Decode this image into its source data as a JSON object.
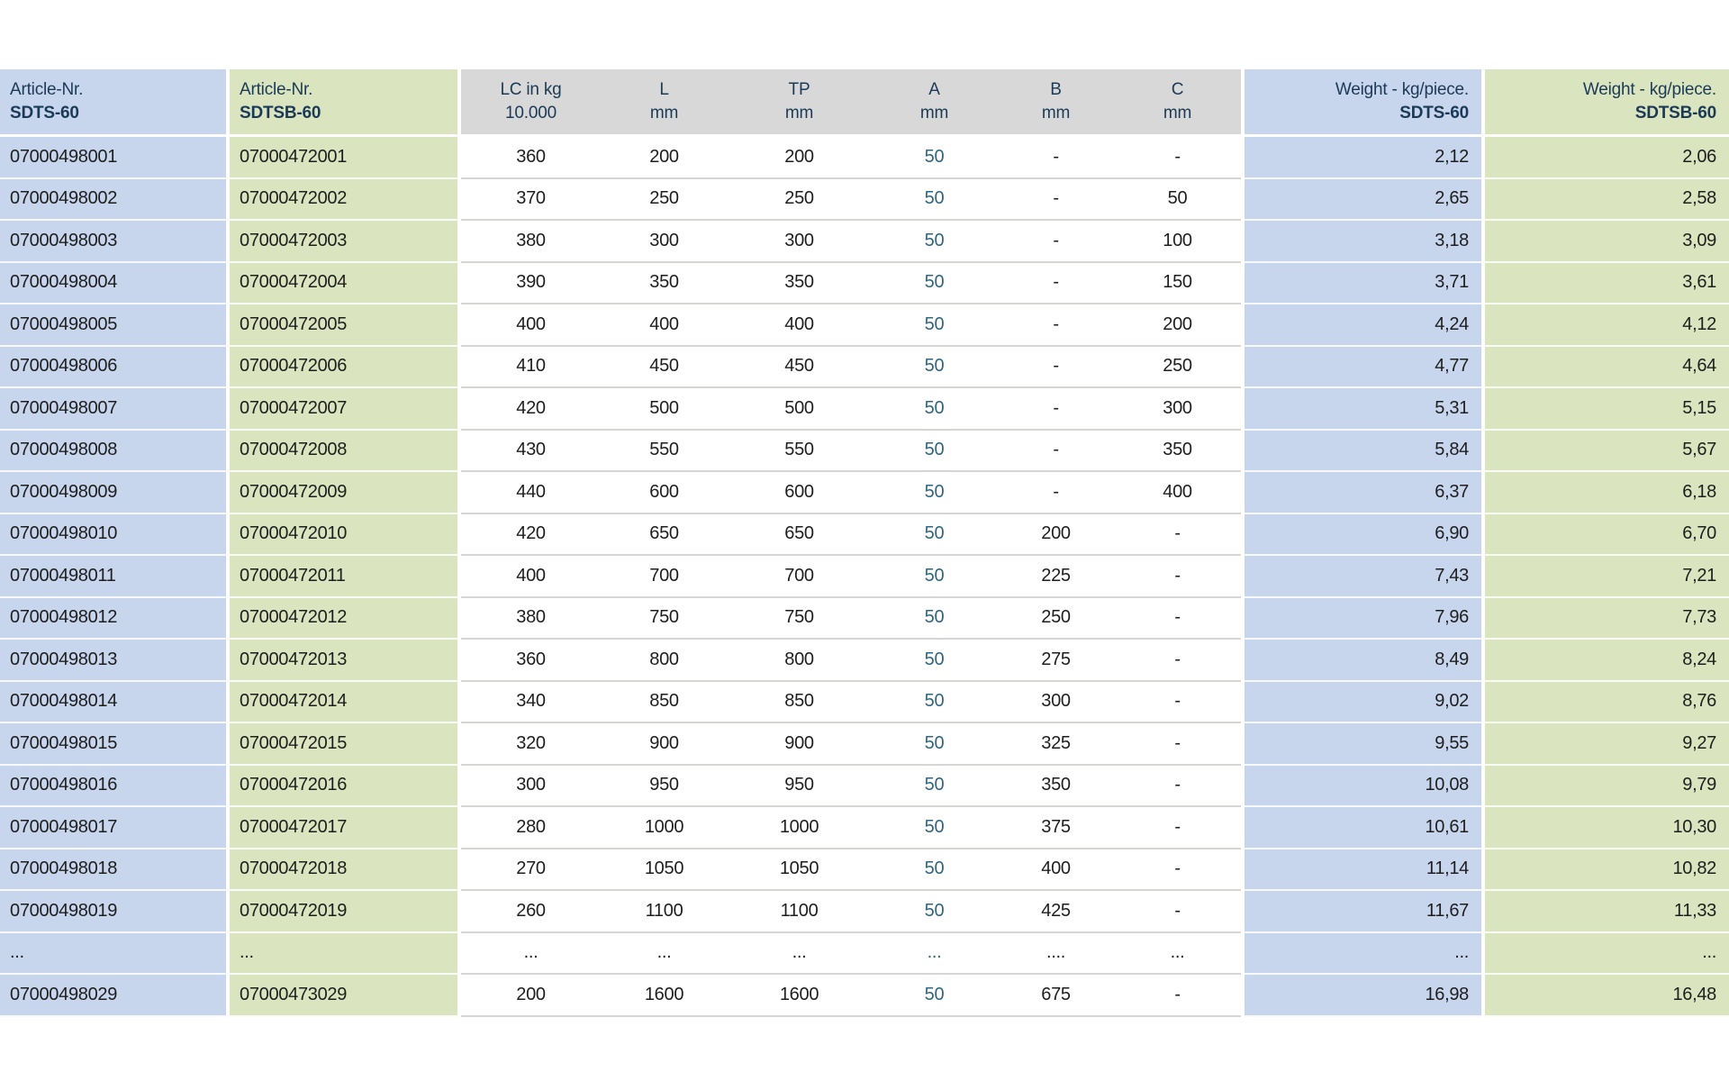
{
  "colors": {
    "blue_column": "#c7d5ed",
    "green_column": "#dae5c0",
    "gray_header": "#d8d8d8",
    "header_text": "#1b3a57",
    "body_text": "#1e1e1e",
    "a_column_text": "#2f6680"
  },
  "table": {
    "headers": [
      {
        "line1": "Article-Nr.",
        "line2": "SDTS-60",
        "align": "left",
        "bg": "blue",
        "bold2": true
      },
      {
        "line1": "Article-Nr.",
        "line2": "SDTSB-60",
        "align": "left",
        "bg": "green",
        "bold2": true
      },
      {
        "line1": "LC in kg",
        "line2": "10.000",
        "align": "center",
        "bg": "gray",
        "bold2": false
      },
      {
        "line1": "L",
        "line2": "mm",
        "align": "center",
        "bg": "gray",
        "bold2": false
      },
      {
        "line1": "TP",
        "line2": "mm",
        "align": "center",
        "bg": "gray",
        "bold2": false
      },
      {
        "line1": "A",
        "line2": "mm",
        "align": "center",
        "bg": "gray",
        "bold2": false
      },
      {
        "line1": "B",
        "line2": "mm",
        "align": "center",
        "bg": "gray",
        "bold2": false
      },
      {
        "line1": "C",
        "line2": "mm",
        "align": "center",
        "bg": "gray",
        "bold2": false
      },
      {
        "line1": "Weight - kg/piece.",
        "line2": "SDTS-60",
        "align": "right",
        "bg": "blue",
        "bold2": true
      },
      {
        "line1": "Weight - kg/piece.",
        "line2": "SDTSB-60",
        "align": "right",
        "bg": "green",
        "bold2": true
      }
    ],
    "rows": [
      [
        "07000498001",
        "07000472001",
        "360",
        "200",
        "200",
        "50",
        "-",
        "-",
        "2,12",
        "2,06"
      ],
      [
        "07000498002",
        "07000472002",
        "370",
        "250",
        "250",
        "50",
        "-",
        "50",
        "2,65",
        "2,58"
      ],
      [
        "07000498003",
        "07000472003",
        "380",
        "300",
        "300",
        "50",
        "-",
        "100",
        "3,18",
        "3,09"
      ],
      [
        "07000498004",
        "07000472004",
        "390",
        "350",
        "350",
        "50",
        "-",
        "150",
        "3,71",
        "3,61"
      ],
      [
        "07000498005",
        "07000472005",
        "400",
        "400",
        "400",
        "50",
        "-",
        "200",
        "4,24",
        "4,12"
      ],
      [
        "07000498006",
        "07000472006",
        "410",
        "450",
        "450",
        "50",
        "-",
        "250",
        "4,77",
        "4,64"
      ],
      [
        "07000498007",
        "07000472007",
        "420",
        "500",
        "500",
        "50",
        "-",
        "300",
        "5,31",
        "5,15"
      ],
      [
        "07000498008",
        "07000472008",
        "430",
        "550",
        "550",
        "50",
        "-",
        "350",
        "5,84",
        "5,67"
      ],
      [
        "07000498009",
        "07000472009",
        "440",
        "600",
        "600",
        "50",
        "-",
        "400",
        "6,37",
        "6,18"
      ],
      [
        "07000498010",
        "07000472010",
        "420",
        "650",
        "650",
        "50",
        "200",
        "-",
        "6,90",
        "6,70"
      ],
      [
        "07000498011",
        "07000472011",
        "400",
        "700",
        "700",
        "50",
        "225",
        "-",
        "7,43",
        "7,21"
      ],
      [
        "07000498012",
        "07000472012",
        "380",
        "750",
        "750",
        "50",
        "250",
        "-",
        "7,96",
        "7,73"
      ],
      [
        "07000498013",
        "07000472013",
        "360",
        "800",
        "800",
        "50",
        "275",
        "-",
        "8,49",
        "8,24"
      ],
      [
        "07000498014",
        "07000472014",
        "340",
        "850",
        "850",
        "50",
        "300",
        "-",
        "9,02",
        "8,76"
      ],
      [
        "07000498015",
        "07000472015",
        "320",
        "900",
        "900",
        "50",
        "325",
        "-",
        "9,55",
        "9,27"
      ],
      [
        "07000498016",
        "07000472016",
        "300",
        "950",
        "950",
        "50",
        "350",
        "-",
        "10,08",
        "9,79"
      ],
      [
        "07000498017",
        "07000472017",
        "280",
        "1000",
        "1000",
        "50",
        "375",
        "-",
        "10,61",
        "10,30"
      ],
      [
        "07000498018",
        "07000472018",
        "270",
        "1050",
        "1050",
        "50",
        "400",
        "-",
        "11,14",
        "10,82"
      ],
      [
        "07000498019",
        "07000472019",
        "260",
        "1100",
        "1100",
        "50",
        "425",
        "-",
        "11,67",
        "11,33"
      ],
      [
        "...",
        "...",
        "...",
        "...",
        "...",
        "...",
        "....",
        "...",
        "...",
        "..."
      ],
      [
        "07000498029",
        "07000473029",
        "200",
        "1600",
        "1600",
        "50",
        "675",
        "-",
        "16,98",
        "16,48"
      ]
    ]
  }
}
